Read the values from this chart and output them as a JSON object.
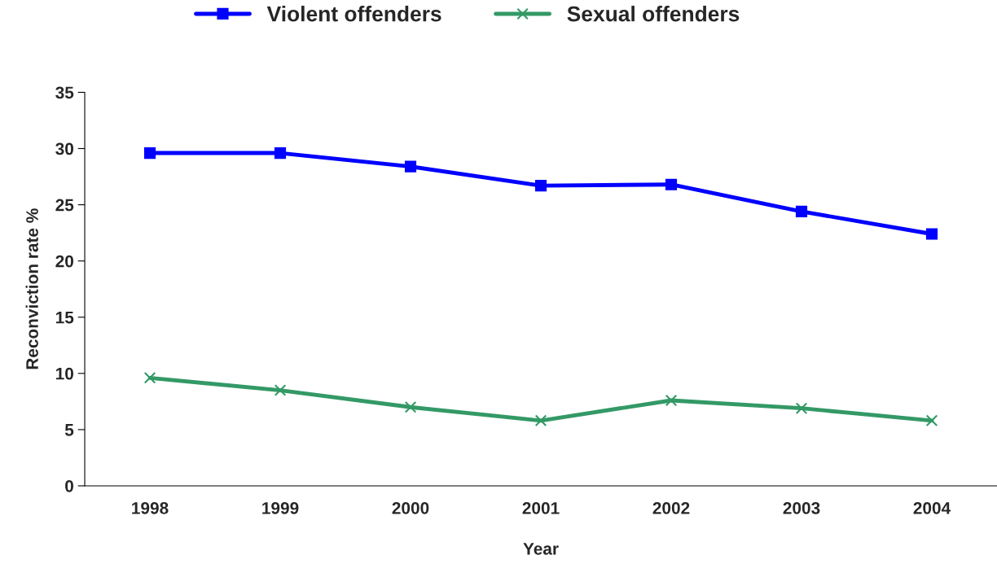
{
  "chart_data": {
    "type": "line",
    "xlabel": "Year",
    "ylabel": "Reconviction rate %",
    "categories": [
      "1998",
      "1999",
      "2000",
      "2001",
      "2002",
      "2003",
      "2004"
    ],
    "series": [
      {
        "name": "Violent offenders",
        "color": "#0000ff",
        "marker": "square",
        "values": [
          29.6,
          29.6,
          28.4,
          26.7,
          26.8,
          24.4,
          22.4
        ]
      },
      {
        "name": "Sexual offenders",
        "color": "#339966",
        "marker": "cross",
        "values": [
          9.6,
          8.5,
          7.0,
          5.8,
          7.6,
          6.9,
          5.8
        ]
      }
    ],
    "ylim": [
      0,
      35
    ],
    "yticks": [
      0,
      5,
      10,
      15,
      20,
      25,
      30,
      35
    ],
    "grid": false,
    "legend": "top",
    "line_style": "solid"
  }
}
